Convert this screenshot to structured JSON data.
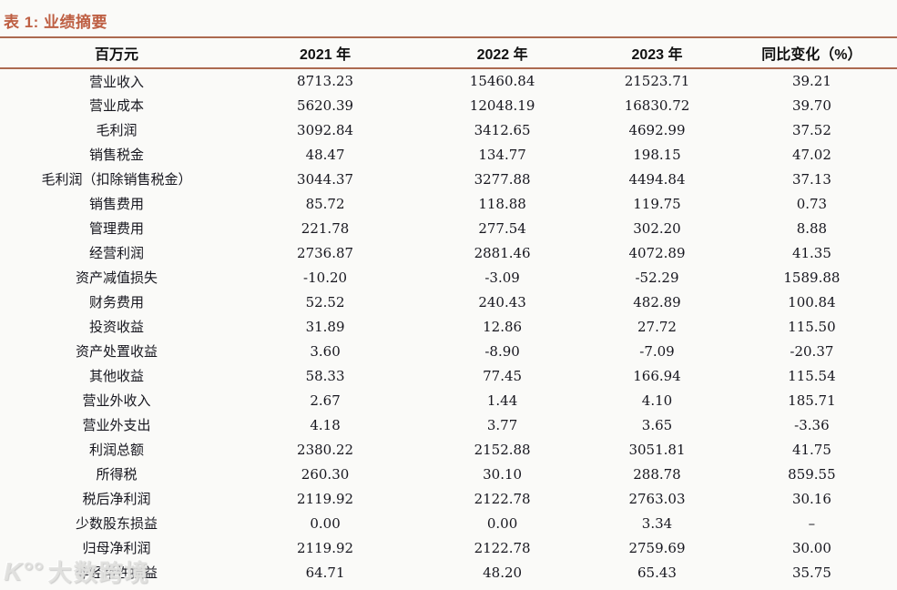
{
  "table": {
    "title": "表 1: 业绩摘要",
    "columns": [
      "百万元",
      "2021 年",
      "2022 年",
      "2023 年",
      "同比变化（%）"
    ],
    "rows": [
      {
        "label": "营业收入",
        "y2021": "8713.23",
        "y2022": "15460.84",
        "y2023": "21523.71",
        "yoy": "39.21"
      },
      {
        "label": "营业成本",
        "y2021": "5620.39",
        "y2022": "12048.19",
        "y2023": "16830.72",
        "yoy": "39.70"
      },
      {
        "label": "毛利润",
        "y2021": "3092.84",
        "y2022": "3412.65",
        "y2023": "4692.99",
        "yoy": "37.52"
      },
      {
        "label": "销售税金",
        "y2021": "48.47",
        "y2022": "134.77",
        "y2023": "198.15",
        "yoy": "47.02"
      },
      {
        "label": "毛利润（扣除销售税金）",
        "y2021": "3044.37",
        "y2022": "3277.88",
        "y2023": "4494.84",
        "yoy": "37.13"
      },
      {
        "label": "销售费用",
        "y2021": "85.72",
        "y2022": "118.88",
        "y2023": "119.75",
        "yoy": "0.73"
      },
      {
        "label": "管理费用",
        "y2021": "221.78",
        "y2022": "277.54",
        "y2023": "302.20",
        "yoy": "8.88"
      },
      {
        "label": "经营利润",
        "y2021": "2736.87",
        "y2022": "2881.46",
        "y2023": "4072.89",
        "yoy": "41.35"
      },
      {
        "label": "资产减值损失",
        "y2021": "-10.20",
        "y2022": "-3.09",
        "y2023": "-52.29",
        "yoy": "1589.88"
      },
      {
        "label": "财务费用",
        "y2021": "52.52",
        "y2022": "240.43",
        "y2023": "482.89",
        "yoy": "100.84"
      },
      {
        "label": "投资收益",
        "y2021": "31.89",
        "y2022": "12.86",
        "y2023": "27.72",
        "yoy": "115.50"
      },
      {
        "label": "资产处置收益",
        "y2021": "3.60",
        "y2022": "-8.90",
        "y2023": "-7.09",
        "yoy": "-20.37"
      },
      {
        "label": "其他收益",
        "y2021": "58.33",
        "y2022": "77.45",
        "y2023": "166.94",
        "yoy": "115.54"
      },
      {
        "label": "营业外收入",
        "y2021": "2.67",
        "y2022": "1.44",
        "y2023": "4.10",
        "yoy": "185.71"
      },
      {
        "label": "营业外支出",
        "y2021": "4.18",
        "y2022": "3.77",
        "y2023": "3.65",
        "yoy": "-3.36"
      },
      {
        "label": "利润总额",
        "y2021": "2380.22",
        "y2022": "2152.88",
        "y2023": "3051.81",
        "yoy": "41.75"
      },
      {
        "label": "所得税",
        "y2021": "260.30",
        "y2022": "30.10",
        "y2023": "288.78",
        "yoy": "859.55"
      },
      {
        "label": "税后净利润",
        "y2021": "2119.92",
        "y2022": "2122.78",
        "y2023": "2763.03",
        "yoy": "30.16"
      },
      {
        "label": "少数股东损益",
        "y2021": "0.00",
        "y2022": "0.00",
        "y2023": "3.34",
        "yoy": "–"
      },
      {
        "label": "归母净利润",
        "y2021": "2119.92",
        "y2022": "2122.78",
        "y2023": "2759.69",
        "yoy": "30.00"
      },
      {
        "label": "非经常性损益",
        "y2021": "64.71",
        "y2022": "48.20",
        "y2023": "65.43",
        "yoy": "35.75"
      }
    ]
  },
  "watermark": {
    "logo": "K°°",
    "text": "大数跨境"
  },
  "colors": {
    "accent": "#BE5F43",
    "rule": "#AC6A50",
    "text": "#16161E",
    "background": "#FAFAF8"
  }
}
